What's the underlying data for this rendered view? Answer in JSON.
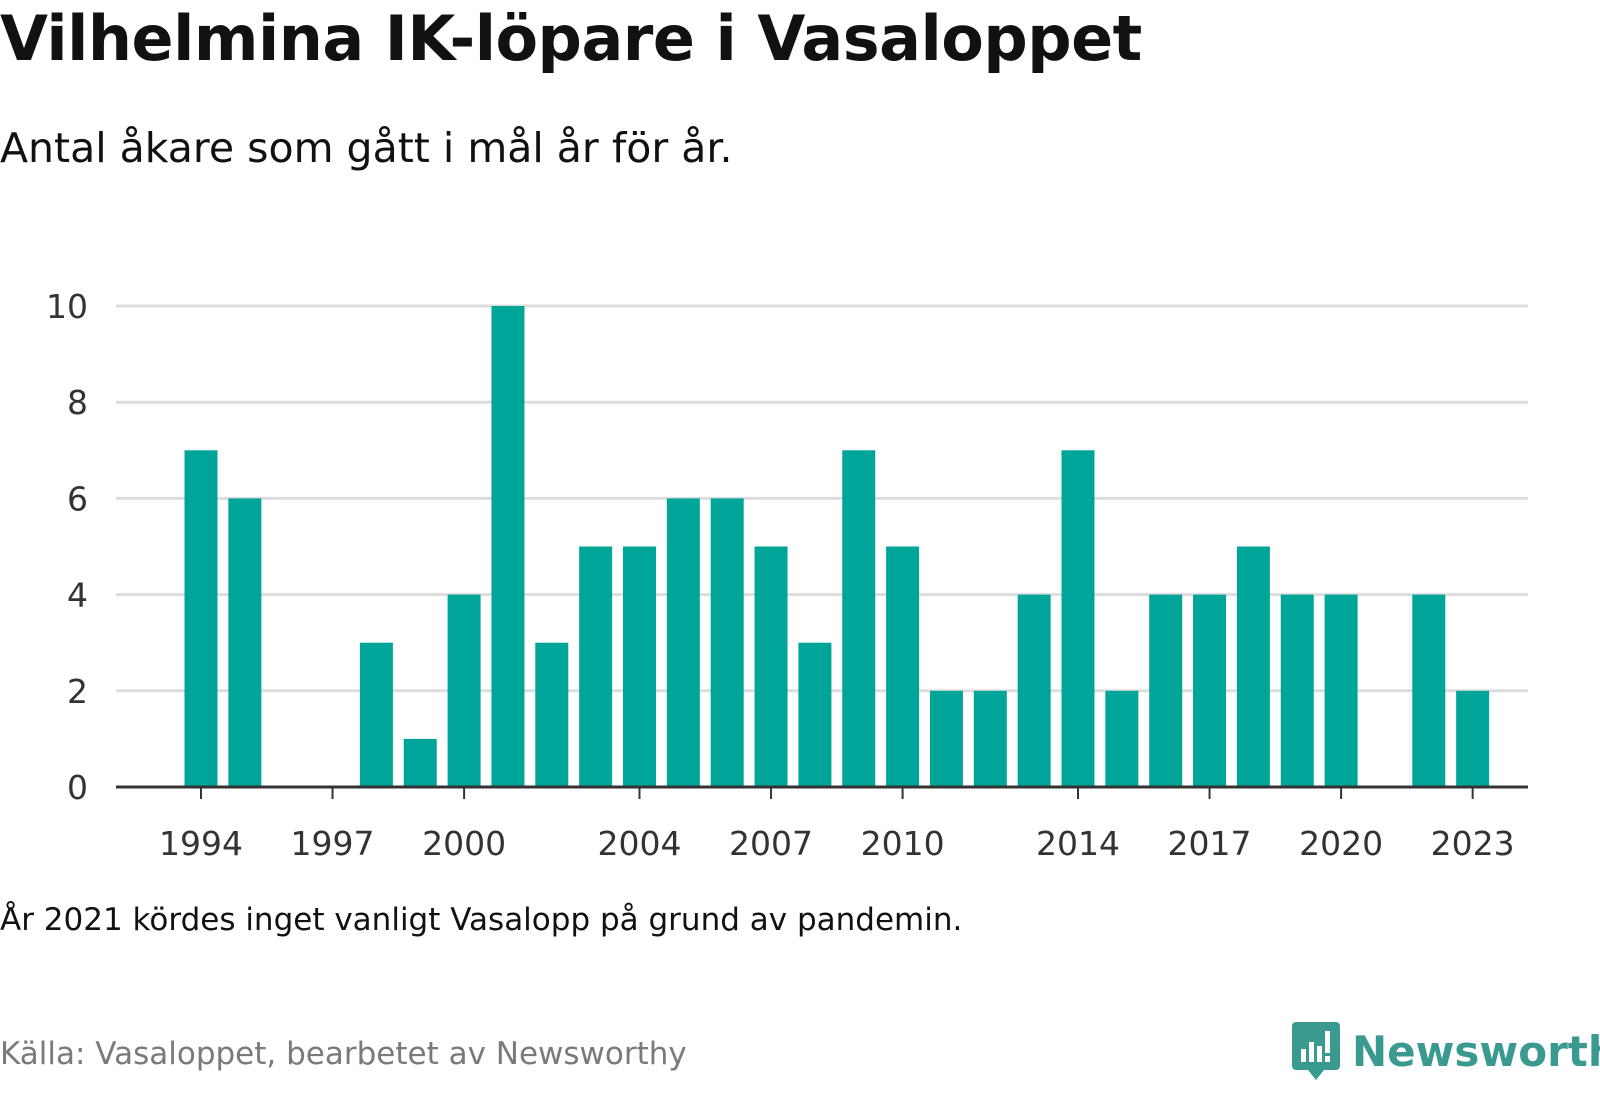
{
  "title": "Vilhelmina IK-löpare i Vasaloppet",
  "subtitle": "Antal åkare som gått i mål år för år.",
  "note": "År 2021 kördes inget vanligt Vasalopp på grund av pandemin.",
  "source": "Källa: Vasaloppet, bearbetet av Newsworthy",
  "logo": {
    "text": "Newsworthy",
    "icon": "newsworthy-chart-icon",
    "color": "#3a9a90"
  },
  "colors": {
    "bar": "#00a59a",
    "grid": "#dddddd",
    "axis": "#333333"
  },
  "chart_data": {
    "type": "bar",
    "title": "Vilhelmina IK-löpare i Vasaloppet",
    "subtitle": "Antal åkare som gått i mål år för år.",
    "xlabel": "",
    "ylabel": "",
    "categories": [
      1994,
      1995,
      1996,
      1997,
      1998,
      1999,
      2000,
      2001,
      2002,
      2003,
      2004,
      2005,
      2006,
      2007,
      2008,
      2009,
      2010,
      2011,
      2012,
      2013,
      2014,
      2015,
      2016,
      2017,
      2018,
      2019,
      2020,
      2021,
      2022,
      2023
    ],
    "values": [
      7,
      6,
      0,
      0,
      3,
      1,
      4,
      10,
      3,
      5,
      5,
      6,
      6,
      5,
      3,
      7,
      5,
      2,
      2,
      4,
      7,
      2,
      4,
      4,
      5,
      4,
      4,
      0,
      4,
      2
    ],
    "x_ticks": [
      1994,
      1997,
      2000,
      2004,
      2007,
      2010,
      2014,
      2017,
      2020,
      2023
    ],
    "y_ticks": [
      0,
      2,
      4,
      6,
      8,
      10
    ],
    "ylim": [
      0,
      10
    ],
    "grid": true,
    "legend": "none"
  }
}
